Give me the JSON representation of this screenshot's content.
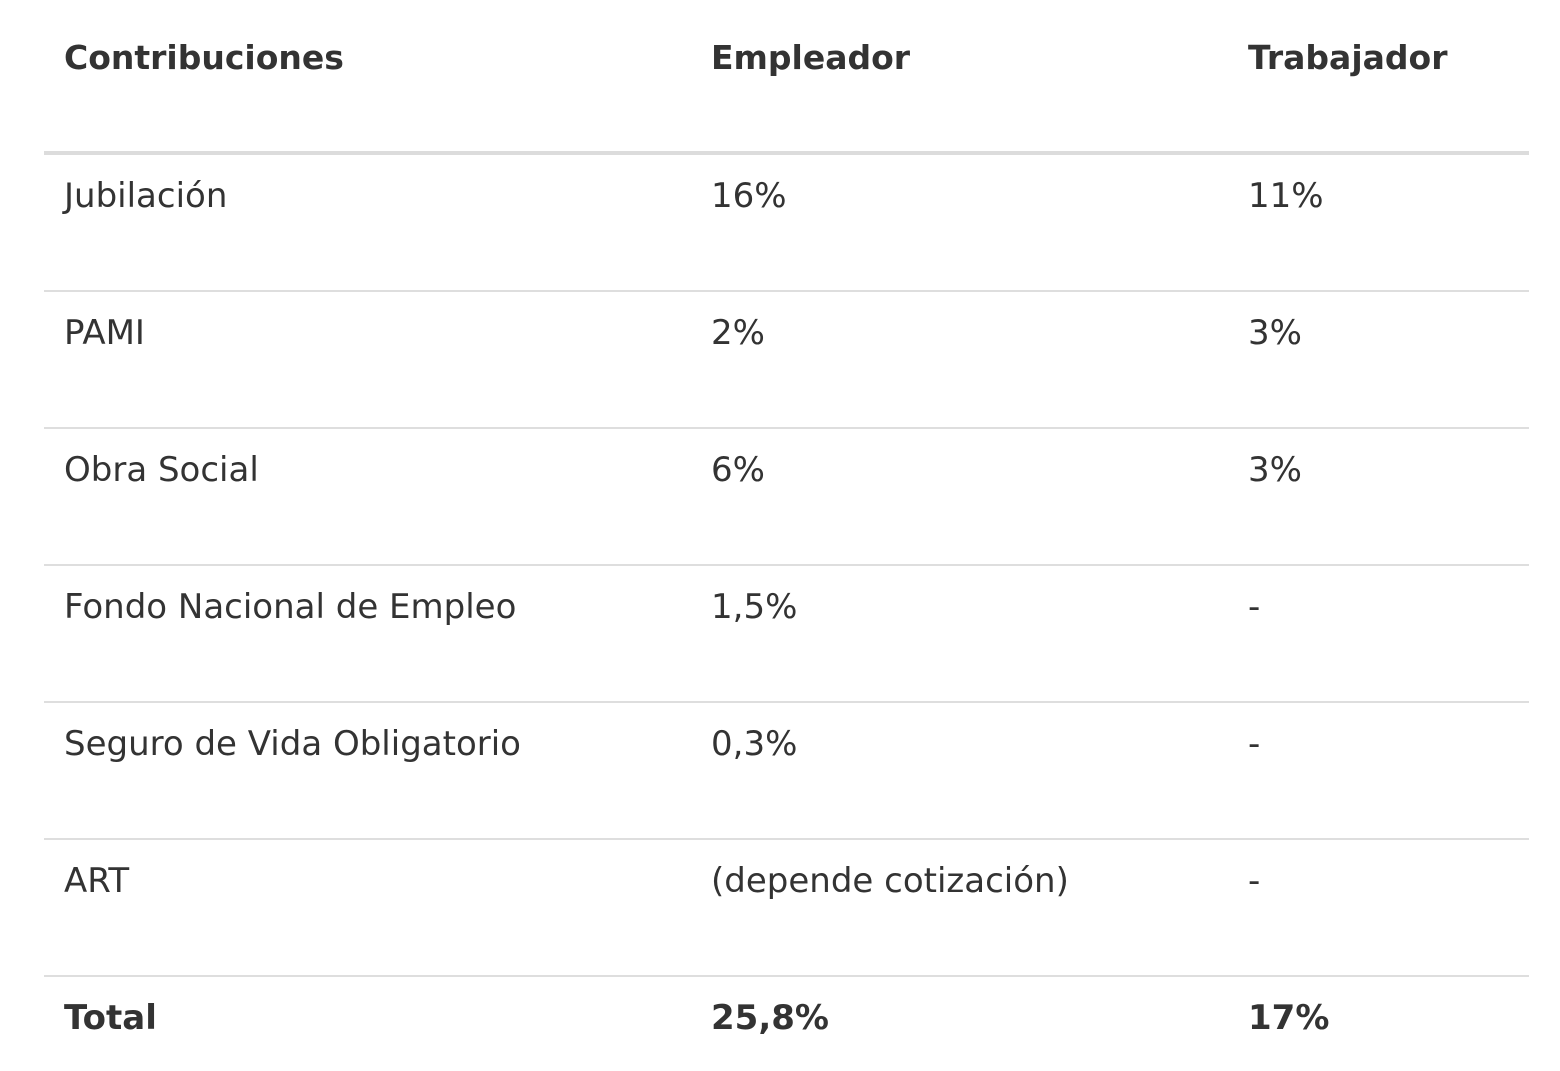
{
  "table": {
    "headers": [
      "Contribuciones",
      "Empleador",
      "Trabajador"
    ],
    "rows": [
      [
        "Jubilación",
        "16%",
        "11%"
      ],
      [
        "PAMI",
        "2%",
        "3%"
      ],
      [
        "Obra Social",
        "6%",
        "3%"
      ],
      [
        "Fondo Nacional de Empleo",
        "1,5%",
        "-"
      ],
      [
        "Seguro de Vida Obligatorio",
        "0,3%",
        "-"
      ],
      [
        "ART",
        "(depende cotización)",
        "-"
      ]
    ],
    "total": [
      "Total",
      "25,8%",
      "17%"
    ]
  }
}
